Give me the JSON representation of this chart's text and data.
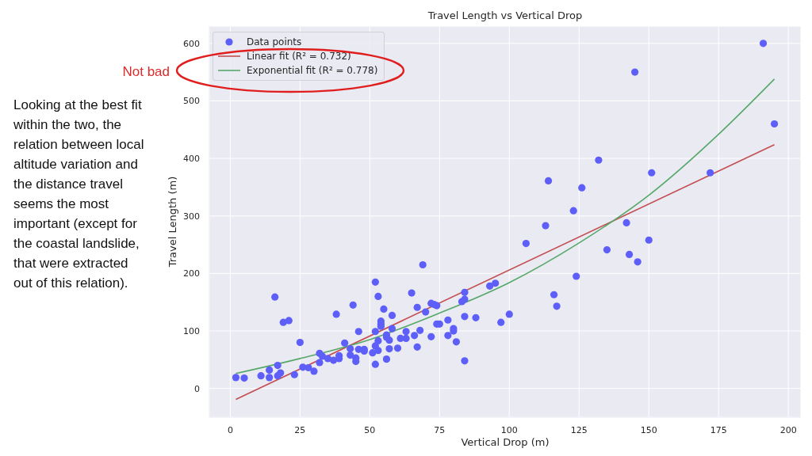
{
  "chart_data": {
    "type": "scatter",
    "title": "Travel Length vs Vertical Drop",
    "xlabel": "Vertical Drop (m)",
    "ylabel": "Travel Length (m)",
    "series": [
      {
        "name": "Data points",
        "type": "scatter",
        "color": "#5e5ef8",
        "marker": "circle",
        "x": [
          2,
          5,
          11,
          14,
          14,
          17,
          18,
          17,
          16,
          19,
          21,
          23,
          25,
          26,
          28,
          30,
          32,
          32,
          33,
          35,
          37,
          38,
          39,
          39,
          41,
          43,
          43,
          44,
          45,
          45,
          46,
          46,
          48,
          48,
          51,
          52,
          52,
          52,
          52,
          53,
          53,
          53,
          54,
          54,
          54,
          55,
          56,
          56,
          56,
          57,
          57,
          58,
          58,
          60,
          61,
          63,
          63,
          65,
          66,
          67,
          67,
          68,
          69,
          70,
          72,
          72,
          73,
          74,
          74,
          75,
          78,
          78,
          80,
          80,
          81,
          83,
          84,
          84,
          84,
          84,
          88,
          93,
          95,
          97,
          100,
          106,
          113,
          114,
          116,
          117,
          123,
          124,
          126,
          132,
          135,
          142,
          143,
          145,
          146,
          150,
          151,
          172,
          191,
          195
        ],
        "values": [
          19,
          18,
          22,
          19,
          32,
          22,
          27,
          40,
          159,
          115,
          118,
          24,
          80,
          37,
          36,
          30,
          45,
          61,
          56,
          52,
          49,
          129,
          52,
          57,
          79,
          69,
          58,
          145,
          53,
          47,
          99,
          68,
          68,
          65,
          62,
          99,
          185,
          42,
          74,
          160,
          66,
          83,
          117,
          112,
          108,
          138,
          93,
          89,
          51,
          84,
          69,
          127,
          104,
          70,
          87,
          87,
          99,
          166,
          92,
          141,
          72,
          101,
          215,
          133,
          148,
          90,
          146,
          144,
          112,
          112,
          119,
          92,
          104,
          100,
          81,
          151,
          125,
          155,
          167,
          48,
          123,
          178,
          183,
          115,
          129,
          252,
          283,
          361,
          163,
          143,
          309,
          195,
          349,
          397,
          241,
          288,
          233,
          550,
          220,
          258,
          375,
          375,
          600,
          460
        ]
      },
      {
        "name": "Linear fit (R² = 0.732)",
        "type": "line",
        "color": "#c44e52",
        "x": [
          2,
          195
        ],
        "values": [
          -19,
          424
        ]
      },
      {
        "name": "Exponential fit (R² = 0.778)",
        "type": "line",
        "color": "#55a868",
        "x": [
          2,
          25,
          50,
          75,
          100,
          125,
          150,
          175,
          195
        ],
        "values": [
          26,
          52,
          85,
          131,
          184,
          253,
          336,
          442,
          538
        ]
      }
    ],
    "xlim": [
      -7.5,
      204.5
    ],
    "ylim": [
      -50,
      630
    ],
    "xticks": [
      0,
      25,
      50,
      75,
      100,
      125,
      150,
      175,
      200
    ],
    "yticks": [
      0,
      100,
      200,
      300,
      400,
      500,
      600
    ],
    "grid": true,
    "legend": "top left",
    "annotations": [
      "Not bad",
      "Looking at the best fit within the two, the relation between local altitude variation and the distance travel seems the most important (except for the coastal landslide, that were extracted out of this relation)."
    ]
  }
}
